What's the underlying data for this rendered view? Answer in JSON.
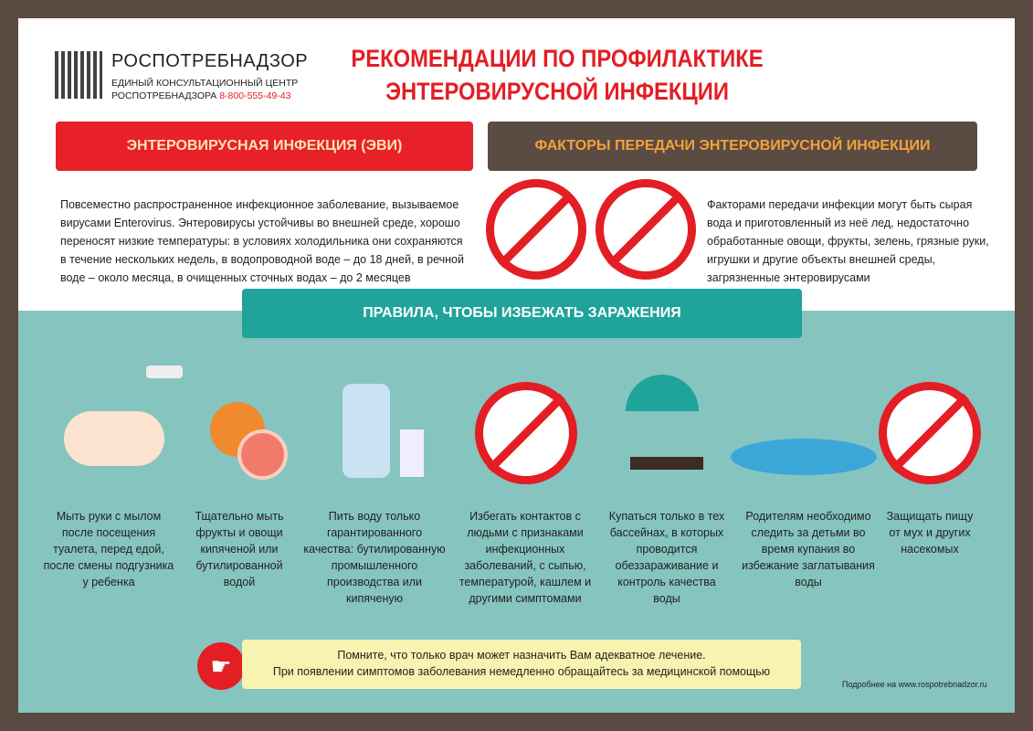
{
  "header": {
    "org": "РОСПОТРЕБНАДЗОР",
    "center_line1": "ЕДИНЫЙ КОНСУЛЬТАЦИОННЫЙ ЦЕНТР",
    "center_line2": "РОСПОТРЕБНАДЗОРА",
    "phone": "8-800-555-49-43",
    "title_line1": "РЕКОМЕНДАЦИИ ПО ПРОФИЛАКТИКЕ",
    "title_line2": "ЭНТЕРОВИРУСНОЙ ИНФЕКЦИИ"
  },
  "left_section": {
    "heading": "ЭНТЕРОВИРУСНАЯ ИНФЕКЦИЯ (ЭВИ)",
    "text": "Повсеместно распространенное инфекционное заболевание, вызываемое вирусами Enterovirus. Энтеровирусы устойчивы во внешней среде, хорошо переносят низкие температуры: в условиях холодильника они сохраняются в течение нескольких недель, в водопроводной воде – до 18 дней, в речной воде – около месяца, в очищенных сточных водах – до 2 месяцев"
  },
  "right_section": {
    "heading": "ФАКТОРЫ ПЕРЕДАЧИ ЭНТЕРОВИРУСНОЙ ИНФЕКЦИИ",
    "text": "Факторами передачи инфекции могут быть сырая вода и приготовленный из неё лед, недостаточно обработанные овощи, фрукты, зелень, грязные руки, игрушки и другие объекты внешней среды, загрязненные энтеровирусами"
  },
  "rules": {
    "heading": "ПРАВИЛА, ЧТОБЫ ИЗБЕЖАТЬ ЗАРАЖЕНИЯ",
    "items": [
      {
        "icon": "washing-hands-icon",
        "text": "Мыть руки с мылом после посещения туалета, перед едой, после смены подгузника у ребенка"
      },
      {
        "icon": "fruit-icon",
        "text": "Тщательно мыть фрукты и овощи кипяченой или бутилированной водой"
      },
      {
        "icon": "water-bottle-icon",
        "text": "Пить воду только гарантированного качества: бутилированную промышленного производства или кипяченую"
      },
      {
        "icon": "no-coughing-person-icon",
        "text": "Избегать контактов с людьми с признаками инфекционных заболеваний, с сыпью, температурой, кашлем и другими симптомами"
      },
      {
        "icon": "beach-umbrella-icon",
        "text": "Купаться только в тех бассейнах, в которых проводится обеззараживание и контроль качества воды"
      },
      {
        "icon": "swimming-children-icon",
        "text": "Родителям необходимо следить за детьми во время купания во избежание заглатывания воды"
      },
      {
        "icon": "no-fly-icon",
        "text": "Защищать пищу от мух и других насекомых"
      }
    ]
  },
  "note": {
    "line1": "Помните, что только врач может назначить Вам адекватное лечение.",
    "line2": "При появлении симптомов заболевания немедленно обращайтесь за медицинской помощью"
  },
  "footer": {
    "more": "Подробнее на www.rospotrebnadzor.ru"
  },
  "colors": {
    "red": "#e8202a",
    "brown": "#5a4b43",
    "orange": "#f5a03a",
    "teal": "#1fa39a",
    "background_teal": "#86c4bf",
    "note_yellow": "#f8f3b0"
  }
}
